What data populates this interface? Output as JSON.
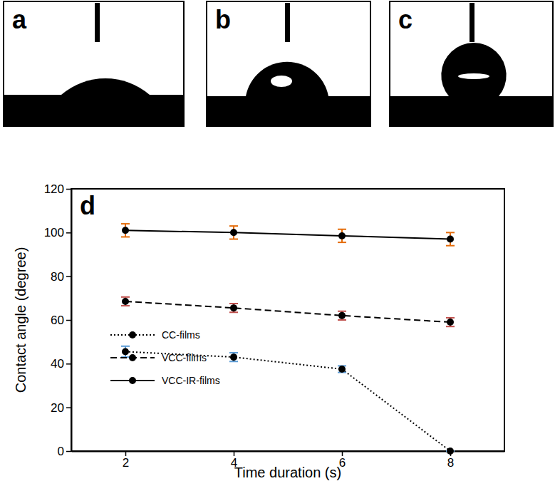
{
  "images": {
    "labels": [
      "a",
      "b",
      "c"
    ]
  },
  "chart_data": {
    "type": "line",
    "panel_label": "d",
    "x_label": "Time duration (s)",
    "y_label": "Contact angle (degree)",
    "x": [
      2,
      4,
      6,
      8
    ],
    "xlim": [
      1,
      9
    ],
    "xticks": [
      2,
      4,
      6,
      8
    ],
    "ylim": [
      0,
      120
    ],
    "yticks": [
      0,
      20,
      40,
      60,
      80,
      100,
      120
    ],
    "grid": false,
    "legend": "lower left",
    "series": [
      {
        "name": "CC-films",
        "color": "#000000",
        "line_style": "dotted",
        "marker": "circle",
        "values": [
          45.5,
          43,
          37.5,
          0
        ],
        "errors": [
          2.5,
          2,
          1.5,
          0
        ]
      },
      {
        "name": "VCC-films",
        "color": "#000000",
        "line_style": "dashed",
        "marker": "circle",
        "values": [
          68.5,
          65.5,
          62,
          59
        ],
        "errors": [
          2,
          2,
          2,
          2
        ]
      },
      {
        "name": "VCC-IR-films",
        "color": "#000000",
        "line_style": "solid",
        "marker": "circle",
        "values": [
          101,
          100,
          98.5,
          97
        ],
        "errors": [
          3,
          3,
          3,
          3
        ]
      }
    ]
  }
}
